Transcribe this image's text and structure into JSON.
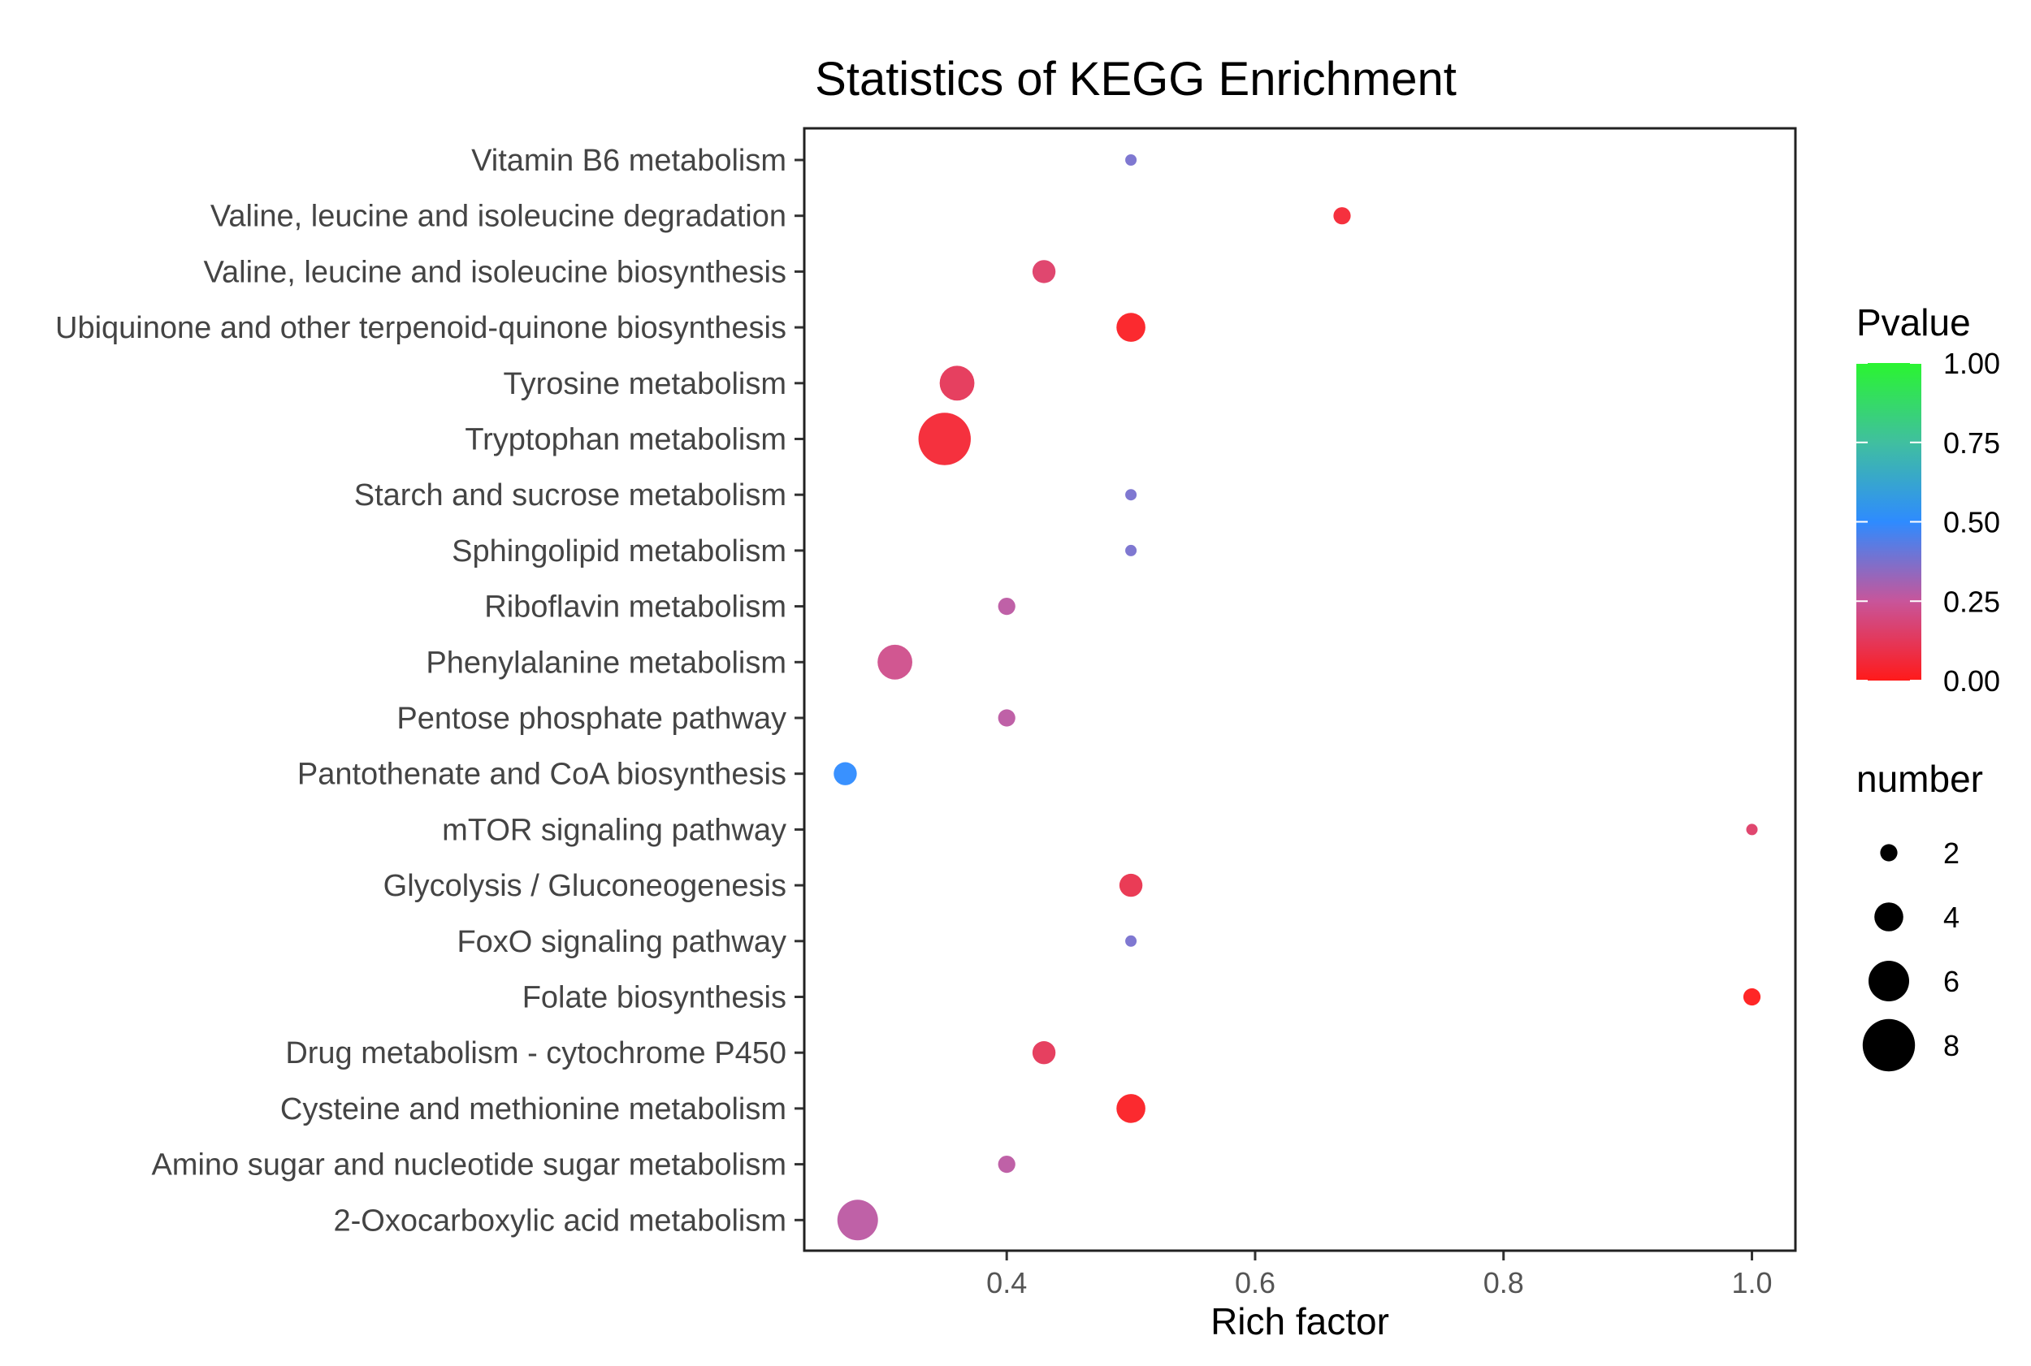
{
  "chart_data": {
    "type": "scatter",
    "title": "Statistics of KEGG Enrichment",
    "xlabel": "Rich factor",
    "ylabel": "",
    "xlim": [
      0.237,
      1.035
    ],
    "x_ticks": [
      {
        "value": 0.4,
        "label": "0.4"
      },
      {
        "value": 0.6,
        "label": "0.6"
      },
      {
        "value": 0.8,
        "label": "0.8"
      },
      {
        "value": 1.0,
        "label": "1.0"
      }
    ],
    "grid": false,
    "points": [
      {
        "term": "Vitamin B6 metabolism",
        "rich_factor": 0.5,
        "pvalue": 0.38,
        "number": 1
      },
      {
        "term": "Valine, leucine and isoleucine degradation",
        "rich_factor": 0.67,
        "pvalue": 0.05,
        "number": 2
      },
      {
        "term": "Valine, leucine and isoleucine biosynthesis",
        "rich_factor": 0.43,
        "pvalue": 0.15,
        "number": 3
      },
      {
        "term": "Ubiquinone and other terpenoid-quinone biosynthesis",
        "rich_factor": 0.5,
        "pvalue": 0.02,
        "number": 4
      },
      {
        "term": "Tyrosine metabolism",
        "rich_factor": 0.36,
        "pvalue": 0.12,
        "number": 5
      },
      {
        "term": "Tryptophan metabolism",
        "rich_factor": 0.35,
        "pvalue": 0.05,
        "number": 8
      },
      {
        "term": "Starch and sucrose metabolism",
        "rich_factor": 0.5,
        "pvalue": 0.38,
        "number": 1
      },
      {
        "term": "Sphingolipid metabolism",
        "rich_factor": 0.5,
        "pvalue": 0.38,
        "number": 1
      },
      {
        "term": "Riboflavin metabolism",
        "rich_factor": 0.4,
        "pvalue": 0.27,
        "number": 2
      },
      {
        "term": "Phenylalanine metabolism",
        "rich_factor": 0.31,
        "pvalue": 0.22,
        "number": 5
      },
      {
        "term": "Pentose phosphate pathway",
        "rich_factor": 0.4,
        "pvalue": 0.27,
        "number": 2
      },
      {
        "term": "Pantothenate and CoA biosynthesis",
        "rich_factor": 0.27,
        "pvalue": 0.5,
        "number": 3
      },
      {
        "term": "mTOR signaling pathway",
        "rich_factor": 1.0,
        "pvalue": 0.15,
        "number": 1
      },
      {
        "term": "Glycolysis / Gluconeogenesis",
        "rich_factor": 0.5,
        "pvalue": 0.1,
        "number": 3
      },
      {
        "term": "FoxO signaling pathway",
        "rich_factor": 0.5,
        "pvalue": 0.38,
        "number": 1
      },
      {
        "term": "Folate biosynthesis",
        "rich_factor": 1.0,
        "pvalue": 0.0,
        "number": 2
      },
      {
        "term": "Drug metabolism - cytochrome P450",
        "rich_factor": 0.43,
        "pvalue": 0.12,
        "number": 3
      },
      {
        "term": "Cysteine and methionine metabolism",
        "rich_factor": 0.5,
        "pvalue": 0.02,
        "number": 4
      },
      {
        "term": "Amino sugar and nucleotide sugar metabolism",
        "rich_factor": 0.4,
        "pvalue": 0.27,
        "number": 2
      },
      {
        "term": "2-Oxocarboxylic acid metabolism",
        "rich_factor": 0.28,
        "pvalue": 0.27,
        "number": 6
      }
    ],
    "color_legend": {
      "title": "Pvalue",
      "range": [
        0.0,
        1.0
      ],
      "ticks": [
        {
          "value": 1.0,
          "label": "1.00"
        },
        {
          "value": 0.75,
          "label": "0.75"
        },
        {
          "value": 0.5,
          "label": "0.50"
        },
        {
          "value": 0.25,
          "label": "0.25"
        },
        {
          "value": 0.0,
          "label": "0.00"
        }
      ],
      "stops": [
        {
          "value": 0.0,
          "color": "#FF1A1A"
        },
        {
          "value": 0.25,
          "color": "#C8559A"
        },
        {
          "value": 0.5,
          "color": "#2E8BFF"
        },
        {
          "value": 0.75,
          "color": "#40BF9F"
        },
        {
          "value": 1.0,
          "color": "#2AF530"
        }
      ]
    },
    "size_legend": {
      "title": "number",
      "range": [
        1,
        8
      ],
      "entries": [
        {
          "value": 2,
          "label": "2"
        },
        {
          "value": 4,
          "label": "4"
        },
        {
          "value": 6,
          "label": "6"
        },
        {
          "value": 8,
          "label": "8"
        }
      ]
    },
    "legend_position": "right"
  }
}
